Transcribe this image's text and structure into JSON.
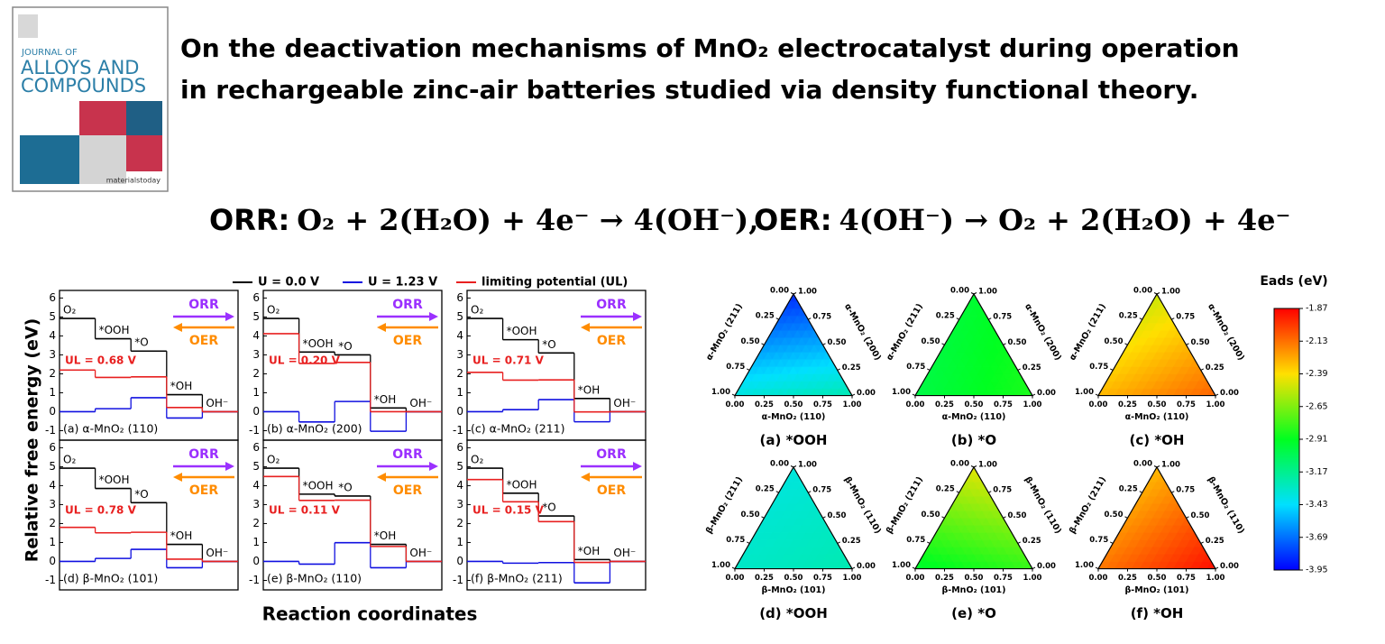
{
  "header": {
    "title_lines": [
      "On the deactivation mechanisms of MnO₂ electrocatalyst during operation",
      "in rechargeable zinc-air batteries studied via density functional theory."
    ]
  },
  "journal": {
    "line1": "JOURNAL OF",
    "line2": "ALLOYS AND",
    "line3": "COMPOUNDS",
    "publisher": "materialstoday"
  },
  "equations": [
    {
      "name": "ORR:",
      "formula": "O₂ + 2(H₂O) + 4e⁻ →  4(OH⁻),"
    },
    {
      "name": "OER:",
      "formula": "4(OH⁻) → O₂ + 2(H₂O) + 4e⁻"
    }
  ],
  "chart_data": [
    {
      "type": "step",
      "ylabel": "Relative free energy (eV)",
      "xlabel": "Reaction coordinates",
      "panel_label": "(a) α-MnO₂ (110)",
      "ul_label": "UL = 0.68 V",
      "orr": "ORR",
      "oer": "OER",
      "categories": [
        "O₂",
        "*OOH",
        "*O",
        "*OH",
        "OH⁻"
      ],
      "ylim": [
        -1.5,
        6.4
      ],
      "yticks": [
        -1,
        0,
        1,
        2,
        3,
        4,
        5,
        6
      ],
      "series": [
        {
          "name": "U = 0.0 V",
          "color": "#000000",
          "values": [
            4.92,
            3.85,
            3.2,
            0.9,
            0
          ]
        },
        {
          "name": "U = 1.23 V",
          "color": "#1010e0",
          "values": [
            0,
            0.16,
            0.74,
            -0.33,
            0
          ]
        },
        {
          "name": "limiting potential (UL)",
          "color": "#e82020",
          "values": [
            2.2,
            1.81,
            1.84,
            0.22,
            0
          ]
        }
      ]
    },
    {
      "type": "step",
      "panel_label": "(b) α-MnO₂ (200)",
      "ul_label": "UL = 0.20 V",
      "orr": "ORR",
      "oer": "OER",
      "categories": [
        "O₂",
        "*OOH",
        "*O",
        "*OH",
        "OH⁻"
      ],
      "ylim": [
        -1.5,
        6.4
      ],
      "yticks": [
        -1,
        0,
        1,
        2,
        3,
        4,
        5,
        6
      ],
      "series": [
        {
          "color": "#000000",
          "values": [
            4.92,
            3.15,
            3.0,
            0.2,
            0
          ]
        },
        {
          "color": "#1010e0",
          "values": [
            0,
            -0.54,
            0.54,
            -1.03,
            0
          ]
        },
        {
          "color": "#e82020",
          "values": [
            4.12,
            2.55,
            2.6,
            0,
            0
          ]
        }
      ]
    },
    {
      "type": "step",
      "panel_label": "(c) α-MnO₂ (211)",
      "ul_label": "UL = 0.71 V",
      "orr": "ORR",
      "oer": "OER",
      "categories": [
        "O₂",
        "*OOH",
        "*O",
        "*OH",
        "OH⁻"
      ],
      "ylim": [
        -1.5,
        6.4
      ],
      "yticks": [
        -1,
        0,
        1,
        2,
        3,
        4,
        5,
        6
      ],
      "series": [
        {
          "color": "#000000",
          "values": [
            4.92,
            3.8,
            3.1,
            0.7,
            0
          ]
        },
        {
          "color": "#1010e0",
          "values": [
            0,
            0.11,
            0.64,
            -0.53,
            0
          ]
        },
        {
          "color": "#e82020",
          "values": [
            2.08,
            1.67,
            1.68,
            -0.01,
            0
          ]
        }
      ]
    },
    {
      "type": "step",
      "panel_label": "(d) β-MnO₂ (101)",
      "ul_label": "UL = 0.78 V",
      "orr": "ORR",
      "oer": "OER",
      "categories": [
        "O₂",
        "*OOH",
        "*O",
        "*OH",
        "OH⁻"
      ],
      "ylim": [
        -1.5,
        6.4
      ],
      "yticks": [
        -1,
        0,
        1,
        2,
        3,
        4,
        5,
        6
      ],
      "series": [
        {
          "color": "#000000",
          "values": [
            4.92,
            3.85,
            3.1,
            0.9,
            0
          ]
        },
        {
          "color": "#1010e0",
          "values": [
            0,
            0.16,
            0.64,
            -0.33,
            0
          ]
        },
        {
          "color": "#e82020",
          "values": [
            1.8,
            1.51,
            1.54,
            0.12,
            0
          ]
        }
      ]
    },
    {
      "type": "step",
      "panel_label": "(e) β-MnO₂ (110)",
      "ul_label": "UL = 0.11 V",
      "orr": "ORR",
      "oer": "OER",
      "categories": [
        "O₂",
        "*OOH",
        "*O",
        "*OH",
        "OH⁻"
      ],
      "ylim": [
        -1.5,
        6.4
      ],
      "yticks": [
        -1,
        0,
        1,
        2,
        3,
        4,
        5,
        6
      ],
      "series": [
        {
          "color": "#000000",
          "values": [
            4.92,
            3.55,
            3.45,
            0.9,
            0
          ]
        },
        {
          "color": "#1010e0",
          "values": [
            0,
            -0.14,
            0.99,
            -0.33,
            0
          ]
        },
        {
          "color": "#e82020",
          "values": [
            4.48,
            3.22,
            3.23,
            0.79,
            0
          ]
        }
      ]
    },
    {
      "type": "step",
      "panel_label": "(f) β-MnO₂ (211)",
      "ul_label": "UL = 0.15 V",
      "orr": "ORR",
      "oer": "OER",
      "categories": [
        "O₂",
        "*OOH",
        "*O",
        "*OH",
        "OH⁻"
      ],
      "ylim": [
        -1.5,
        6.4
      ],
      "yticks": [
        -1,
        0,
        1,
        2,
        3,
        4,
        5,
        6
      ],
      "series": [
        {
          "color": "#000000",
          "values": [
            4.92,
            3.6,
            2.4,
            0.1,
            0
          ]
        },
        {
          "color": "#1010e0",
          "values": [
            0,
            -0.09,
            -0.06,
            -1.13,
            0
          ]
        },
        {
          "color": "#e82020",
          "values": [
            4.32,
            3.15,
            2.1,
            -0.05,
            0
          ]
        }
      ]
    },
    {
      "type": "ternary",
      "caption": "(a) *OOH",
      "bottom_axis": "α-MnO₂ (110)",
      "left_axis": "α-MnO₂ (211)",
      "right_axis": "α-MnO₂ (200)",
      "ticks": [
        {
          "value": 0,
          "label": "0.00"
        },
        {
          "value": 0.25,
          "label": "0.25"
        },
        {
          "value": 0.5,
          "label": "0.50"
        },
        {
          "value": 0.75,
          "label": "0.75"
        },
        {
          "value": 1,
          "label": "1.00"
        }
      ],
      "vertex_values": {
        "left": -3.35,
        "right": -3.25,
        "top": -3.85
      }
    },
    {
      "type": "ternary",
      "caption": "(b) *O",
      "bottom_axis": "α-MnO₂ (110)",
      "left_axis": "α-MnO₂ (211)",
      "right_axis": "α-MnO₂ (200)",
      "ticks": [
        {
          "value": 0,
          "label": "0.00"
        },
        {
          "value": 0.25,
          "label": "0.25"
        },
        {
          "value": 0.5,
          "label": "0.50"
        },
        {
          "value": 0.75,
          "label": "0.75"
        },
        {
          "value": 1,
          "label": "1.00"
        }
      ],
      "vertex_values": {
        "left": -3.0,
        "right": -2.85,
        "top": -2.95
      }
    },
    {
      "type": "ternary",
      "caption": "(c) *OH",
      "bottom_axis": "α-MnO₂ (110)",
      "left_axis": "α-MnO₂ (211)",
      "right_axis": "α-MnO₂ (200)",
      "ticks": [
        {
          "value": 0,
          "label": "0.00"
        },
        {
          "value": 0.25,
          "label": "0.25"
        },
        {
          "value": 0.5,
          "label": "0.50"
        },
        {
          "value": 0.75,
          "label": "0.75"
        },
        {
          "value": 1,
          "label": "1.00"
        }
      ],
      "vertex_values": {
        "left": -2.3,
        "right": -2.1,
        "top": -2.5
      }
    },
    {
      "type": "ternary",
      "caption": "(d) *OOH",
      "bottom_axis": "β-MnO₂ (101)",
      "left_axis": "β-MnO₂ (211)",
      "right_axis": "β-MnO₂ (110)",
      "ticks": [
        {
          "value": 0,
          "label": "0.00"
        },
        {
          "value": 0.25,
          "label": "0.25"
        },
        {
          "value": 0.5,
          "label": "0.50"
        },
        {
          "value": 0.75,
          "label": "0.75"
        },
        {
          "value": 1,
          "label": "1.00"
        }
      ],
      "vertex_values": {
        "left": -3.3,
        "right": -3.25,
        "top": -3.35
      }
    },
    {
      "type": "ternary",
      "caption": "(e) *O",
      "bottom_axis": "β-MnO₂ (101)",
      "left_axis": "β-MnO₂ (211)",
      "right_axis": "β-MnO₂ (110)",
      "ticks": [
        {
          "value": 0,
          "label": "0.00"
        },
        {
          "value": 0.25,
          "label": "0.25"
        },
        {
          "value": 0.5,
          "label": "0.50"
        },
        {
          "value": 0.75,
          "label": "0.75"
        },
        {
          "value": 1,
          "label": "1.00"
        }
      ],
      "vertex_values": {
        "left": -2.95,
        "right": -2.8,
        "top": -2.45
      }
    },
    {
      "type": "ternary",
      "caption": "(f) *OH",
      "bottom_axis": "β-MnO₂ (101)",
      "left_axis": "β-MnO₂ (211)",
      "right_axis": "β-MnO₂ (110)",
      "ticks": [
        {
          "value": 0,
          "label": "0.00"
        },
        {
          "value": 0.25,
          "label": "0.25"
        },
        {
          "value": 0.5,
          "label": "0.50"
        },
        {
          "value": 0.75,
          "label": "0.75"
        },
        {
          "value": 1,
          "label": "1.00"
        }
      ],
      "vertex_values": {
        "left": -2.15,
        "right": -1.9,
        "top": -2.3
      }
    },
    {
      "type": "colorbar",
      "title": "Eads (eV)",
      "lim": [
        -3.95,
        -1.87
      ],
      "ticks": [
        -1.87,
        -2.13,
        -2.39,
        -2.65,
        -2.91,
        -3.17,
        -3.43,
        -3.69,
        -3.95
      ],
      "colormap": [
        "#0000ff",
        "#00e0ff",
        "#00ff20",
        "#ffe000",
        "#ff0000"
      ]
    }
  ]
}
